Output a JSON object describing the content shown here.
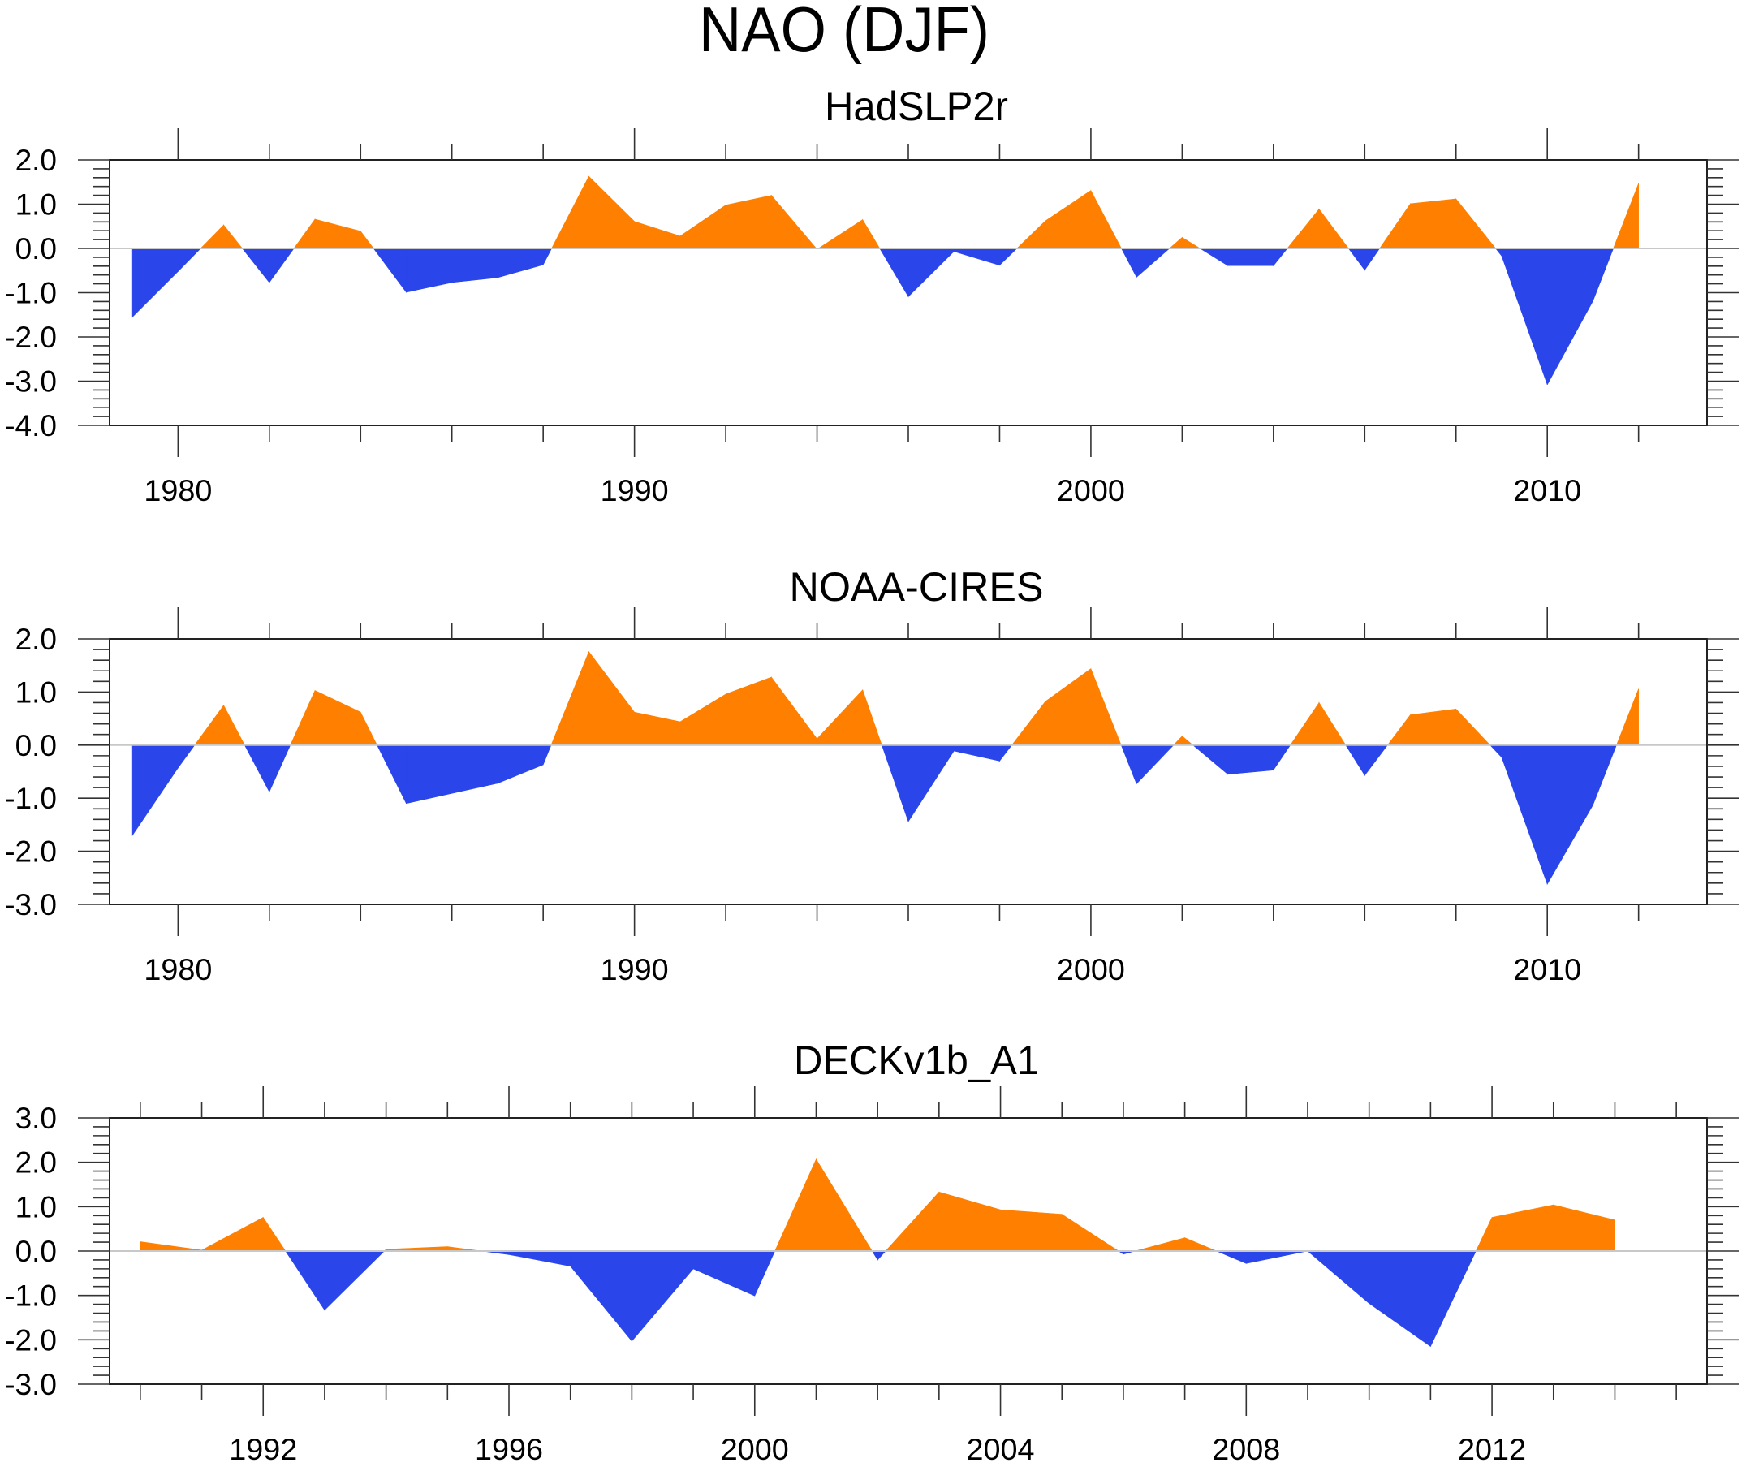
{
  "title": "NAO (DJF)",
  "colors": {
    "positive": "#ff8000",
    "negative": "#2a46eb",
    "zero_line": "#c8c8c8",
    "axis": "#222222"
  },
  "chart_data": [
    {
      "type": "area",
      "title": "HadSLP2r",
      "xlabel": "",
      "ylabel": "",
      "xlim": [
        1978.5,
        2013.5
      ],
      "ylim": [
        -4.0,
        2.0
      ],
      "grid": false,
      "legend": "none",
      "fill_positive_color": "#ff8000",
      "fill_negative_color": "#2a46eb",
      "x_major_ticks": [
        1980,
        1990,
        2000,
        2010
      ],
      "x_minor_step": 2,
      "y_major_ticks": [
        2.0,
        1.0,
        0.0,
        -1.0,
        -2.0,
        -3.0,
        -4.0
      ],
      "y_minor_step": 0.2,
      "x_tick_labels": [
        "1980",
        "1990",
        "2000",
        "2010"
      ],
      "y_tick_labels": [
        "2.0",
        "1.0",
        "0.0",
        "-1.0",
        "-2.0",
        "-3.0",
        "-4.0"
      ],
      "x": [
        1979,
        1980,
        1981,
        1982,
        1983,
        1984,
        1985,
        1986,
        1987,
        1988,
        1989,
        1990,
        1991,
        1992,
        1993,
        1994,
        1995,
        1996,
        1997,
        1998,
        1999,
        2000,
        2001,
        2002,
        2003,
        2004,
        2005,
        2006,
        2007,
        2008,
        2009,
        2010,
        2011,
        2012
      ],
      "values": [
        -1.55,
        -0.52,
        0.53,
        -0.77,
        0.66,
        0.39,
        -0.99,
        -0.77,
        -0.66,
        -0.37,
        1.63,
        0.61,
        0.28,
        0.98,
        1.2,
        -0.02,
        0.65,
        -1.09,
        -0.07,
        -0.38,
        0.62,
        1.31,
        -0.65,
        0.25,
        -0.39,
        -0.39,
        0.89,
        -0.49,
        1.01,
        1.12,
        -0.17,
        -3.08,
        -1.19,
        1.47
      ]
    },
    {
      "type": "area",
      "title": "NOAA-CIRES",
      "xlabel": "",
      "ylabel": "",
      "xlim": [
        1978.5,
        2013.5
      ],
      "ylim": [
        -3.0,
        2.0
      ],
      "grid": false,
      "legend": "none",
      "fill_positive_color": "#ff8000",
      "fill_negative_color": "#2a46eb",
      "x_major_ticks": [
        1980,
        1990,
        2000,
        2010
      ],
      "x_minor_step": 2,
      "y_major_ticks": [
        2.0,
        1.0,
        0.0,
        -1.0,
        -2.0,
        -3.0
      ],
      "y_minor_step": 0.2,
      "x_tick_labels": [
        "1980",
        "1990",
        "2000",
        "2010"
      ],
      "y_tick_labels": [
        "2.0",
        "1.0",
        "0.0",
        "-1.0",
        "-2.0",
        "-3.0"
      ],
      "x": [
        1979,
        1980,
        1981,
        1982,
        1983,
        1984,
        1985,
        1986,
        1987,
        1988,
        1989,
        1990,
        1991,
        1992,
        1993,
        1994,
        1995,
        1996,
        1997,
        1998,
        1999,
        2000,
        2001,
        2002,
        2003,
        2004,
        2005,
        2006,
        2007,
        2008,
        2009,
        2010,
        2011,
        2012
      ],
      "values": [
        -1.7,
        -0.43,
        0.75,
        -0.88,
        1.03,
        0.62,
        -1.1,
        -0.91,
        -0.72,
        -0.37,
        1.76,
        0.62,
        0.44,
        0.96,
        1.28,
        0.12,
        1.04,
        -1.44,
        -0.11,
        -0.3,
        0.82,
        1.44,
        -0.73,
        0.17,
        -0.55,
        -0.47,
        0.8,
        -0.57,
        0.57,
        0.68,
        -0.23,
        -2.62,
        -1.13,
        1.06
      ]
    },
    {
      "type": "area",
      "title": "DECKv1b_A1",
      "xlabel": "",
      "ylabel": "",
      "xlim": [
        1989.5,
        2015.5
      ],
      "ylim": [
        -3.0,
        3.0
      ],
      "grid": false,
      "legend": "none",
      "fill_positive_color": "#ff8000",
      "fill_negative_color": "#2a46eb",
      "x_major_ticks": [
        1992,
        1996,
        2000,
        2004,
        2008,
        2012
      ],
      "x_minor_step": 1,
      "y_major_ticks": [
        3.0,
        2.0,
        1.0,
        0.0,
        -1.0,
        -2.0,
        -3.0
      ],
      "y_minor_step": 0.2,
      "x_tick_labels": [
        "1992",
        "1996",
        "2000",
        "2004",
        "2008",
        "2012"
      ],
      "y_tick_labels": [
        "3.0",
        "2.0",
        "1.0",
        "0.0",
        "-1.0",
        "-2.0",
        "-3.0"
      ],
      "x": [
        1990,
        1991,
        1992,
        1993,
        1994,
        1995,
        1996,
        1997,
        1998,
        1999,
        2000,
        2001,
        2002,
        2003,
        2004,
        2005,
        2006,
        2007,
        2008,
        2009,
        2010,
        2011,
        2012,
        2013,
        2014
      ],
      "values": [
        0.21,
        0.02,
        0.76,
        -1.33,
        0.04,
        0.1,
        -0.08,
        -0.34,
        -2.03,
        -0.4,
        -1.01,
        2.07,
        -0.2,
        1.33,
        0.93,
        0.83,
        -0.07,
        0.3,
        -0.28,
        0.0,
        -1.18,
        -2.15,
        0.76,
        1.04,
        0.7
      ]
    }
  ]
}
